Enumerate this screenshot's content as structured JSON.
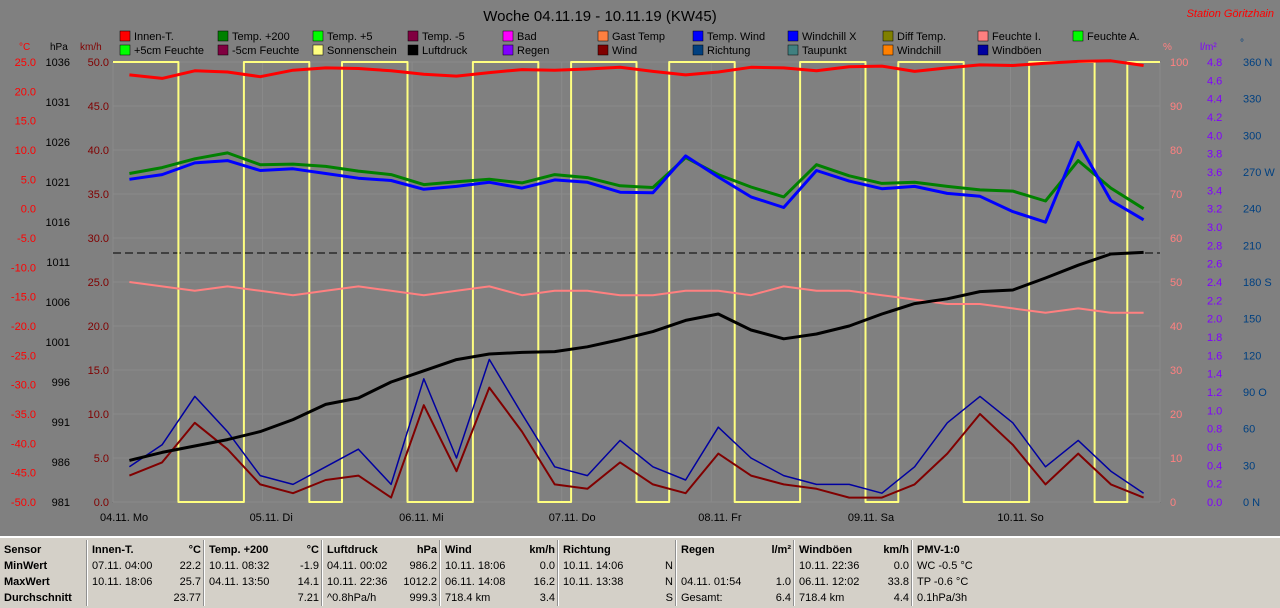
{
  "chart_data": {
    "type": "line",
    "title": "Woche 04.11.19 - 10.11.19 (KW45)",
    "station": "Station Göritzhain",
    "axis_units": {
      "temp": "°C",
      "pressure": "hPa",
      "wind": "km/h",
      "humidity": "%",
      "rain": "l/m²",
      "direction": "°"
    },
    "temp_ticks": [
      "25.0",
      "20.0",
      "15.0",
      "10.0",
      "5.0",
      "0.0",
      "-5.0",
      "-10.0",
      "-15.0",
      "-20.0",
      "-25.0",
      "-30.0",
      "-35.0",
      "-40.0",
      "-45.0",
      "-50.0"
    ],
    "pressure_ticks": [
      "1036",
      "1031",
      "1026",
      "1021",
      "1016",
      "1011",
      "1006",
      "1001",
      "996",
      "991",
      "986",
      "981"
    ],
    "wind_ticks": [
      "50.0",
      "45.0",
      "40.0",
      "35.0",
      "30.0",
      "25.0",
      "20.0",
      "15.0",
      "10.0",
      "5.0",
      "0.0"
    ],
    "humidity_ticks": [
      "100",
      "90",
      "80",
      "70",
      "60",
      "50",
      "40",
      "30",
      "20",
      "10",
      "0"
    ],
    "rain_ticks": [
      "4.8",
      "4.6",
      "4.4",
      "4.2",
      "4.0",
      "3.8",
      "3.6",
      "3.4",
      "3.2",
      "3.0",
      "2.8",
      "2.6",
      "2.4",
      "2.2",
      "2.0",
      "1.8",
      "1.6",
      "1.4",
      "1.2",
      "1.0",
      "0.8",
      "0.6",
      "0.4",
      "0.2",
      "0.0"
    ],
    "direction_ticks": [
      "360 N",
      "330",
      "300",
      "270 W",
      "240",
      "210",
      "180 S",
      "150",
      "120",
      "90 O",
      "60",
      "30",
      "0 N"
    ],
    "x_labels": [
      "04.11. Mo",
      "05.11. Di",
      "06.11. Mi",
      "07.11. Do",
      "08.11. Fr",
      "09.11. Sa",
      "10.11. So"
    ],
    "ylim_temp": [
      -50,
      25
    ],
    "ylim_pressure": [
      981,
      1036
    ],
    "ylim_wind": [
      0,
      50
    ],
    "grid": true,
    "legend": [
      {
        "name": "Innen-T.",
        "color": "#ff0000"
      },
      {
        "name": "Temp. +200",
        "color": "#008000"
      },
      {
        "name": "Temp. +5",
        "color": "#00ff00"
      },
      {
        "name": "Temp. -5",
        "color": "#800040"
      },
      {
        "name": "Bad",
        "color": "#ff00ff"
      },
      {
        "name": "Gast Temp",
        "color": "#ff8040"
      },
      {
        "name": "Temp. Wind",
        "color": "#0000ff"
      },
      {
        "name": "Windchill X",
        "color": "#0000ff"
      },
      {
        "name": "Diff Temp.",
        "color": "#808000"
      },
      {
        "name": "Feuchte I.",
        "color": "#ff8080"
      },
      {
        "name": "Feuchte A.",
        "color": "#00ff00"
      },
      {
        "name": "+5cm Feuchte",
        "color": "#00ff00"
      },
      {
        "name": "-5cm Feuchte",
        "color": "#800040"
      },
      {
        "name": "Sonnenschein",
        "color": "#ffff80"
      },
      {
        "name": "Luftdruck",
        "color": "#000000"
      },
      {
        "name": "Regen",
        "color": "#8000ff"
      },
      {
        "name": "Wind",
        "color": "#800000"
      },
      {
        "name": "Richtung",
        "color": "#004080"
      },
      {
        "name": "Taupunkt",
        "color": "#408080"
      },
      {
        "name": "Windchill",
        "color": "#ff8000"
      },
      {
        "name": "Windböen",
        "color": "#0000a0"
      }
    ],
    "series": [
      {
        "name": "Innen-T.",
        "axis": "temp",
        "values": [
          22.8,
          22.2,
          23.5,
          23.3,
          22.5,
          23.6,
          24.0,
          23.9,
          23.5,
          22.9,
          22.6,
          23.2,
          23.7,
          23.6,
          23.8,
          24.1,
          23.4,
          22.8,
          23.3,
          24.1,
          24.0,
          23.5,
          24.2,
          24.3,
          23.4,
          24.0,
          24.5,
          24.4,
          24.8,
          25.1,
          25.2,
          24.4
        ]
      },
      {
        "name": "Temp. +200",
        "axis": "temp",
        "values": [
          6.0,
          7.0,
          8.5,
          9.5,
          7.5,
          7.6,
          7.2,
          6.4,
          5.8,
          4.1,
          4.6,
          5.0,
          4.4,
          5.8,
          5.3,
          3.9,
          3.6,
          8.7,
          5.8,
          3.7,
          2.0,
          7.5,
          5.6,
          4.3,
          4.5,
          3.8,
          3.2,
          3.0,
          1.3,
          8.2,
          3.5,
          0.0
        ]
      },
      {
        "name": "Windchill X",
        "axis": "temp",
        "values": [
          5.0,
          5.8,
          7.8,
          8.2,
          6.5,
          6.8,
          6.0,
          5.2,
          4.8,
          3.3,
          3.8,
          4.5,
          3.5,
          4.9,
          4.5,
          2.8,
          2.7,
          9.0,
          5.4,
          2.0,
          0.2,
          6.5,
          4.7,
          3.4,
          3.8,
          2.6,
          2.1,
          -0.5,
          -2.3,
          11.3,
          1.4,
          -1.9
        ]
      },
      {
        "name": "Luftdruck",
        "axis": "pressure",
        "values": [
          986.2,
          987.2,
          988.0,
          988.8,
          989.8,
          991.3,
          993.2,
          994.0,
          996.0,
          997.4,
          998.8,
          999.5,
          999.7,
          999.8,
          1000.4,
          1001.3,
          1002.3,
          1003.7,
          1004.5,
          1002.5,
          1001.4,
          1002.0,
          1003.0,
          1004.5,
          1005.8,
          1006.4,
          1007.3,
          1007.5,
          1009.0,
          1010.6,
          1012.0,
          1012.2
        ]
      },
      {
        "name": "Feuchte I.",
        "axis": "humidity",
        "values": [
          50,
          49,
          48,
          49,
          48,
          47,
          48,
          49,
          48,
          47,
          48,
          49,
          47,
          48,
          48,
          47,
          47,
          48,
          48,
          47,
          49,
          48,
          48,
          47,
          46,
          45,
          45,
          44,
          43,
          44,
          43,
          43
        ]
      },
      {
        "name": "Wind",
        "axis": "wind",
        "values": [
          3.0,
          4.5,
          9.0,
          6.0,
          2.0,
          1.0,
          2.5,
          3.0,
          0.5,
          11.0,
          3.5,
          13.0,
          8.0,
          2.0,
          1.5,
          4.5,
          2.0,
          1.0,
          5.5,
          3.0,
          2.0,
          1.5,
          0.5,
          0.5,
          2.0,
          5.5,
          10.0,
          6.5,
          2.0,
          5.5,
          2.0,
          0.5
        ]
      },
      {
        "name": "Windböen",
        "axis": "wind",
        "values": [
          4.0,
          6.5,
          12.0,
          8.0,
          3.0,
          2.0,
          4.0,
          6.0,
          2.0,
          14.0,
          5.0,
          16.2,
          10.0,
          4.0,
          3.0,
          7.0,
          4.0,
          2.5,
          8.5,
          5.0,
          3.0,
          2.0,
          2.0,
          1.0,
          4.0,
          9.0,
          12.0,
          9.0,
          4.0,
          7.0,
          3.5,
          1.0
        ]
      },
      {
        "name": "Sonnenschein",
        "axis": "wind",
        "values": [
          50,
          50,
          0,
          0,
          50,
          50,
          0,
          50,
          50,
          0,
          0,
          50,
          50,
          0,
          50,
          50,
          0,
          50,
          50,
          0,
          0,
          50,
          50,
          0,
          50,
          50,
          0,
          0,
          50,
          50,
          0,
          50
        ]
      }
    ]
  },
  "table": {
    "columns": [
      {
        "title": "Sensor",
        "rows": [
          "MinWert",
          "MaxWert",
          "Durchschnitt"
        ]
      },
      {
        "title": "Innen-T.",
        "unit": "°C",
        "rows": [
          {
            "ts": "07.11.  04:00",
            "val": "22.2"
          },
          {
            "ts": "10.11.  18:06",
            "val": "25.7"
          },
          {
            "ts": "",
            "val": "23.77"
          }
        ]
      },
      {
        "title": "Temp. +200",
        "unit": "°C",
        "rows": [
          {
            "ts": "10.11.  08:32",
            "val": "-1.9"
          },
          {
            "ts": "04.11.  13:50",
            "val": "14.1"
          },
          {
            "ts": "",
            "val": "7.21"
          }
        ]
      },
      {
        "title": "Luftdruck",
        "unit": "hPa",
        "rows": [
          {
            "ts": "04.11.  00:02",
            "val": "986.2"
          },
          {
            "ts": "10.11.  22:36",
            "val": "1012.2"
          },
          {
            "ts": "^0.8hPa/h",
            "val": "999.3"
          }
        ]
      },
      {
        "title": "Wind",
        "unit": "km/h",
        "rows": [
          {
            "ts": "10.11.  18:06",
            "val": "0.0"
          },
          {
            "ts": "06.11.  14:08",
            "val": "16.2"
          },
          {
            "ts": "718.4 km",
            "val": "3.4"
          }
        ]
      },
      {
        "title": "Richtung",
        "unit": "",
        "rows": [
          {
            "ts": "10.11.  14:06",
            "val": "N"
          },
          {
            "ts": "10.11.  13:38",
            "val": "N"
          },
          {
            "ts": "",
            "val": "S"
          }
        ]
      },
      {
        "title": "Regen",
        "unit": "l/m²",
        "rows": [
          {
            "ts": "",
            "val": ""
          },
          {
            "ts": "04.11.  01:54",
            "val": "1.0"
          },
          {
            "ts": "Gesamt:",
            "val": "6.4"
          }
        ]
      },
      {
        "title": "Windböen",
        "unit": "km/h",
        "rows": [
          {
            "ts": "10.11.  22:36",
            "val": "0.0"
          },
          {
            "ts": "06.11.  12:02",
            "val": "33.8"
          },
          {
            "ts": "718.4 km",
            "val": "4.4"
          }
        ]
      },
      {
        "title": "PMV-1:0",
        "unit": "",
        "rows": [
          {
            "ts": "WC -0.5 °C",
            "val": ""
          },
          {
            "ts": "TP -0.6 °C",
            "val": ""
          },
          {
            "ts": "0.1hPa/3h",
            "val": ""
          }
        ]
      }
    ]
  }
}
